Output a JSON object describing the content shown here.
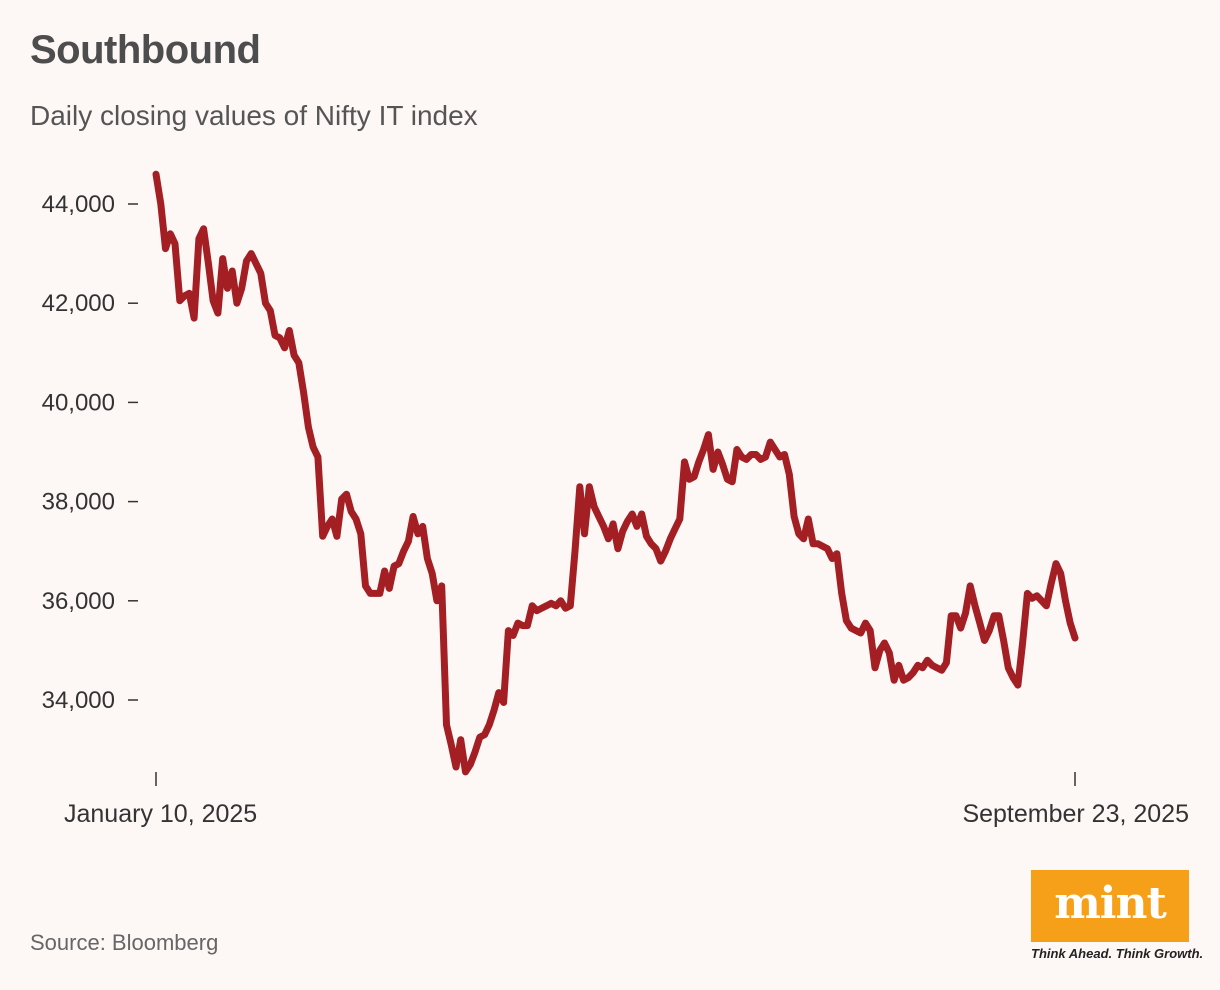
{
  "header": {
    "title": "Southbound",
    "subtitle": "Daily closing values of Nifty IT index"
  },
  "footer": {
    "source": "Source: Bloomberg",
    "logo_text": "mint",
    "logo_tagline": "Think Ahead. Think Growth."
  },
  "colors": {
    "line": "#a31f24",
    "background": "#fdf8f6",
    "logo": "#f6a01a"
  },
  "chart_data": {
    "type": "line",
    "title": "Southbound",
    "subtitle": "Daily closing values of Nifty IT index",
    "xlabel": "",
    "ylabel": "",
    "x_tick_labels": [
      "January 10, 2025",
      "September 23, 2025"
    ],
    "y_ticks": [
      34000,
      36000,
      38000,
      40000,
      42000,
      44000
    ],
    "y_tick_labels": [
      "34,000",
      "36,000",
      "38,000",
      "40,000",
      "42,000",
      "44,000"
    ],
    "ylim": [
      32000,
      44800
    ],
    "xlim": [
      "2025-01-10",
      "2025-09-23"
    ],
    "grid": false,
    "series": [
      {
        "values": [
          44600,
          44000,
          43100,
          43400,
          43200,
          42050,
          42150,
          42200,
          41700,
          43300,
          43500,
          42800,
          42050,
          41800,
          42900,
          42300,
          42650,
          42000,
          42300,
          42850,
          43000,
          42800,
          42600,
          42000,
          41850,
          41350,
          41300,
          41100,
          41450,
          40950,
          40800,
          40200,
          39500,
          39100,
          38900,
          37300,
          37500,
          37650,
          37300,
          38050,
          38150,
          37800,
          37650,
          37350,
          36300,
          36150,
          36150,
          36150,
          36600,
          36250,
          36700,
          36750,
          37000,
          37200,
          37700,
          37350,
          37500,
          36850,
          36550,
          36000,
          36300,
          33500,
          33100,
          32650,
          33200,
          32550,
          32700,
          32950,
          33250,
          33300,
          33500,
          33800,
          34150,
          33950,
          35400,
          35300,
          35550,
          35500,
          35500,
          35900,
          35800,
          35850,
          35900,
          35950,
          35900,
          36000,
          35850,
          35900,
          37000,
          38300,
          37350,
          38300,
          37900,
          37700,
          37500,
          37250,
          37550,
          37050,
          37400,
          37600,
          37750,
          37500,
          37750,
          37300,
          37150,
          37050,
          36800,
          37000,
          37250,
          37450,
          37650,
          38800,
          38450,
          38500,
          38800,
          39050,
          39350,
          38650,
          39000,
          38750,
          38450,
          38400,
          39050,
          38900,
          38850,
          38950,
          38950,
          38850,
          38900,
          39200,
          39050,
          38900,
          38950,
          38550,
          37700,
          37350,
          37250,
          37650,
          37150,
          37150,
          37100,
          37050,
          36850,
          36950,
          36150,
          35600,
          35450,
          35400,
          35350,
          35550,
          35400,
          34650,
          35000,
          35150,
          34950,
          34400,
          34700,
          34400,
          34450,
          34550,
          34700,
          34650,
          34800,
          34700,
          34650,
          34600,
          34750,
          35700,
          35700,
          35450,
          35750,
          36300,
          35900,
          35550,
          35200,
          35400,
          35700,
          35700,
          35200,
          34650,
          34450,
          34300,
          35150,
          36150,
          36050,
          36100,
          36000,
          35900,
          36350,
          36750,
          36550,
          36000,
          35550,
          35250
        ]
      }
    ]
  }
}
